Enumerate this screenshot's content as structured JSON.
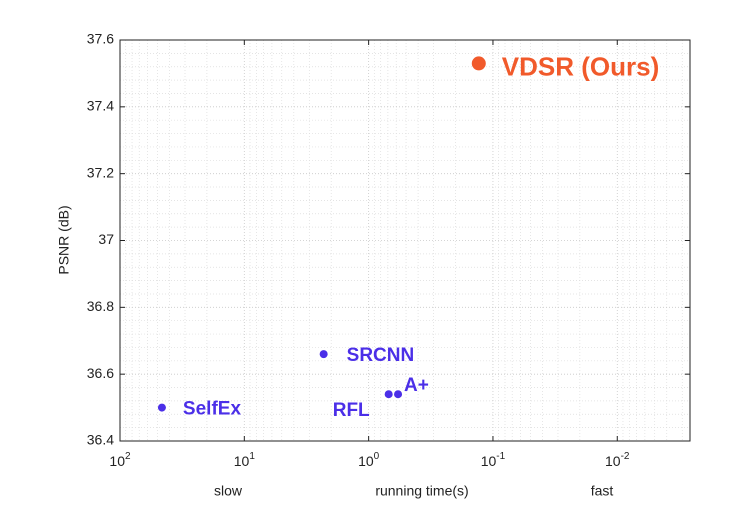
{
  "chart_data": {
    "type": "scatter",
    "x_label": "running time(s)",
    "x_note_left": "slow",
    "x_note_right": "fast",
    "y_label": "PSNR (dB)",
    "log_x": true,
    "x_reversed": true,
    "grid": true,
    "xlim": [
      100,
      0.0026
    ],
    "xticks": [
      {
        "value": 100,
        "label": "10^2"
      },
      {
        "value": 10,
        "label": "10^1"
      },
      {
        "value": 1,
        "label": "10^0"
      },
      {
        "value": 0.1,
        "label": "10^-1"
      },
      {
        "value": 0.01,
        "label": "10^-2"
      }
    ],
    "ylim": [
      36.4,
      37.6
    ],
    "yticks": [
      36.4,
      36.6,
      36.8,
      37,
      37.2,
      37.4,
      37.6
    ],
    "series": [
      {
        "name": "SelfEx",
        "color": "#4b2fe8",
        "x": [
          46
        ],
        "values": [
          36.5
        ]
      },
      {
        "name": "SRCNN",
        "color": "#4b2fe8",
        "x": [
          2.3
        ],
        "values": [
          36.66
        ]
      },
      {
        "name": "RFL",
        "color": "#4b2fe8",
        "x": [
          0.69
        ],
        "values": [
          36.54
        ]
      },
      {
        "name": "A+",
        "color": "#4b2fe8",
        "x": [
          0.58
        ],
        "values": [
          36.54
        ]
      },
      {
        "name": "VDSR (Ours)",
        "color": "#f15a2b",
        "x": [
          0.13
        ],
        "values": [
          37.53
        ]
      }
    ]
  }
}
